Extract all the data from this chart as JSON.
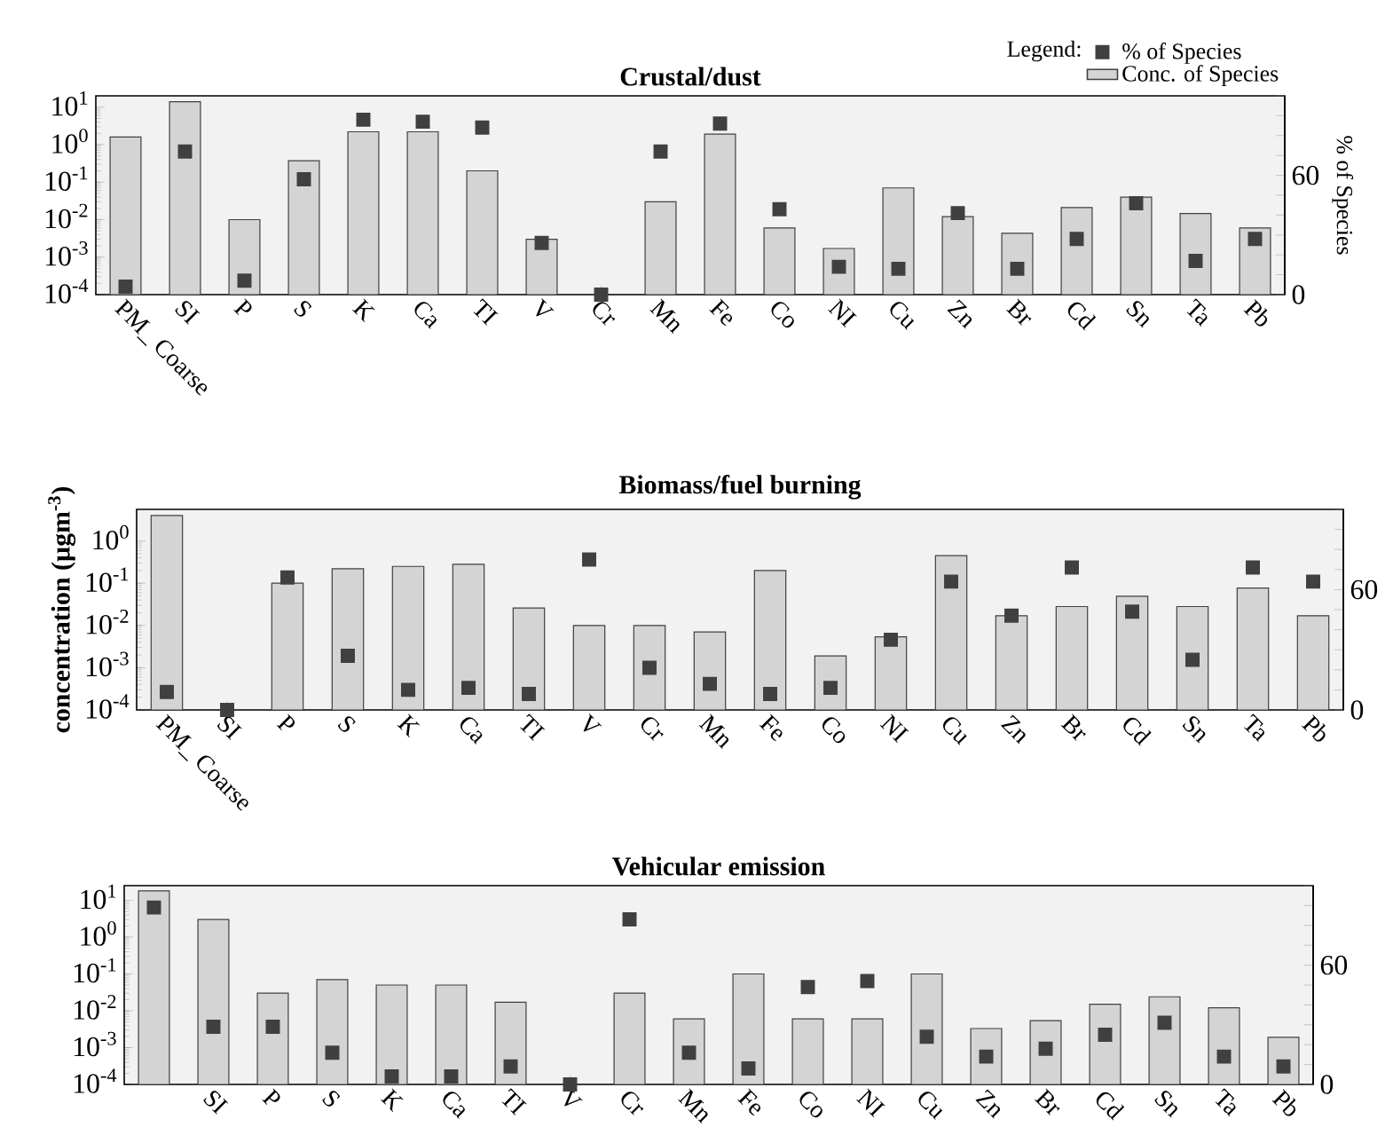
{
  "chart_data": [
    {
      "type": "bar",
      "title": "Crustal/dust",
      "y2label": "% of Species",
      "legend_title": "Legend:",
      "legend": "top right",
      "log": "y",
      "categories": [
        "PM_ Coarse",
        "SI",
        "P",
        "S",
        "K",
        "Ca",
        "TI",
        "V",
        "Cr",
        "Mn",
        "Fe",
        "Co",
        "NI",
        "Cu",
        "Zn",
        "Br",
        "Cd",
        "Sn",
        "Ta",
        "Pb"
      ],
      "ylim": [
        0.0001,
        20
      ],
      "yticks": [
        {
          "value": 0.0001,
          "label": "10$^{-4}$"
        },
        {
          "value": 0.001,
          "label": "10$^{-3}$"
        },
        {
          "value": 0.01,
          "label": "10$^{-2}$"
        },
        {
          "value": 0.1,
          "label": "10$^{-1}$"
        },
        {
          "value": 1,
          "label": "10$^{0}$"
        },
        {
          "value": 10,
          "label": "10$^{1}$"
        }
      ],
      "y2lim": [
        0,
        100
      ],
      "y2ticks": [
        0,
        {
          "value": 10,
          "label": null
        },
        {
          "value": 20,
          "label": null
        },
        {
          "value": 30,
          "label": null
        },
        {
          "value": 40,
          "label": null
        },
        {
          "value": 50,
          "label": null
        },
        60,
        {
          "value": 70,
          "label": null
        },
        {
          "value": 80,
          "label": null
        },
        {
          "value": 90,
          "label": null
        },
        {
          "value": 100,
          "label": null
        }
      ],
      "series": [
        {
          "name": "% of Species",
          "type": "scatter",
          "axis": "y2",
          "marker": "square",
          "color": "#404040",
          "values": [
            4,
            72,
            7,
            58,
            88,
            87,
            84,
            26,
            0,
            72,
            86,
            43,
            14,
            13,
            41,
            13,
            28,
            46,
            17,
            28
          ]
        },
        {
          "name": "Conc. of Species",
          "color": "#d4d4d4",
          "values": [
            1.6,
            14,
            0.01,
            0.37,
            2.2,
            2.2,
            0.2,
            0.003,
            null,
            0.03,
            1.9,
            0.006,
            0.0017,
            0.07,
            0.012,
            0.0043,
            0.021,
            0.04,
            0.0145,
            0.006
          ]
        }
      ]
    },
    {
      "type": "bar",
      "title": "Biomass/fuel burning",
      "ylabel": "concentration (µgm$^{-3}$)",
      "log": "y",
      "categories": [
        "PM_ Coarse",
        "SI",
        "P",
        "S",
        "K",
        "Ca",
        "TI",
        "V",
        "Cr",
        "Mn",
        "Fe",
        "Co",
        "NI",
        "Cu",
        "Zn",
        "Br",
        "Cd",
        "Sn",
        "Ta",
        "Pb"
      ],
      "ylim": [
        0.0001,
        5.6
      ],
      "yticks": [
        {
          "value": 0.0001,
          "label": "10$^{-4}$"
        },
        {
          "value": 0.001,
          "label": "10$^{-3}$"
        },
        {
          "value": 0.01,
          "label": "10$^{-2}$"
        },
        {
          "value": 0.1,
          "label": "10$^{-1}$"
        },
        {
          "value": 1,
          "label": "10$^{0}$"
        }
      ],
      "y2lim": [
        0,
        100
      ],
      "y2ticks": [
        0,
        {
          "value": 10,
          "label": null
        },
        {
          "value": 20,
          "label": null
        },
        {
          "value": 30,
          "label": null
        },
        {
          "value": 40,
          "label": null
        },
        {
          "value": 50,
          "label": null
        },
        60,
        {
          "value": 70,
          "label": null
        },
        {
          "value": 80,
          "label": null
        },
        {
          "value": 90,
          "label": null
        },
        {
          "value": 100,
          "label": null
        }
      ],
      "series": [
        {
          "type": "scatter",
          "axis": "y2",
          "marker": "square",
          "color": "#404040",
          "values": [
            9,
            0,
            66,
            27,
            10,
            11,
            8,
            75,
            21,
            13,
            8,
            11,
            35,
            64,
            47,
            71,
            49,
            25,
            71,
            64
          ]
        },
        {
          "color": "#d4d4d4",
          "values": [
            4,
            null,
            0.1,
            0.22,
            0.25,
            0.28,
            0.026,
            0.01,
            0.01,
            0.007,
            0.2,
            0.0019,
            0.0054,
            0.45,
            0.017,
            0.028,
            0.049,
            0.028,
            0.077,
            0.017
          ]
        }
      ]
    },
    {
      "type": "bar",
      "title": "Vehicular emission",
      "log": "y",
      "categories": [
        null,
        "SI",
        "P",
        "S",
        "K",
        "Ca",
        "TI",
        "V",
        "Cr",
        "Mn",
        "Fe",
        "Co",
        "NI",
        "Cu",
        "Zn",
        "Br",
        "Cd",
        "Sn",
        "Ta",
        "Pb"
      ],
      "ylim": [
        0.0001,
        25
      ],
      "yticks": [
        {
          "value": 0.0001,
          "label": "10$^{-4}$"
        },
        {
          "value": 0.001,
          "label": "10$^{-3}$"
        },
        {
          "value": 0.01,
          "label": "10$^{-2}$"
        },
        {
          "value": 0.1,
          "label": "10$^{-1}$"
        },
        {
          "value": 1,
          "label": "10$^{0}$"
        },
        {
          "value": 10,
          "label": "10$^{1}$"
        }
      ],
      "y2lim": [
        0,
        100
      ],
      "y2ticks": [
        0,
        {
          "value": 10,
          "label": null
        },
        {
          "value": 20,
          "label": null
        },
        {
          "value": 30,
          "label": null
        },
        {
          "value": 40,
          "label": null
        },
        {
          "value": 50,
          "label": null
        },
        60,
        {
          "value": 70,
          "label": null
        },
        {
          "value": 80,
          "label": null
        },
        {
          "value": 90,
          "label": null
        },
        {
          "value": 100,
          "label": null
        }
      ],
      "series": [
        {
          "type": "scatter",
          "axis": "y2",
          "marker": "square",
          "color": "#404040",
          "values": [
            89,
            29,
            29,
            16,
            4,
            4,
            9,
            0,
            83,
            16,
            8,
            49,
            52,
            24,
            14,
            18,
            25,
            31,
            14,
            9
          ]
        },
        {
          "color": "#d4d4d4",
          "values": [
            18,
            3,
            0.03,
            0.07,
            0.05,
            0.05,
            0.017,
            null,
            0.03,
            0.006,
            0.1,
            0.006,
            0.006,
            0.1,
            0.0033,
            0.0054,
            0.015,
            0.024,
            0.012,
            0.0019
          ]
        }
      ]
    }
  ]
}
